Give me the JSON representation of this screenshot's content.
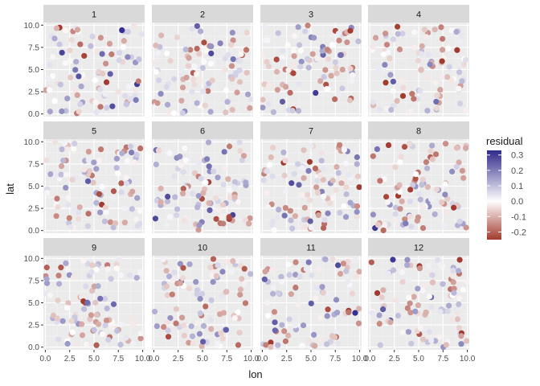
{
  "chart_data": {
    "type": "scatter",
    "facet_by": "month",
    "facet_labels": [
      "1",
      "2",
      "3",
      "4",
      "5",
      "6",
      "7",
      "8",
      "9",
      "10",
      "11",
      "12"
    ],
    "facet_grid": {
      "rows": 3,
      "cols": 4
    },
    "xlabel": "lon",
    "ylabel": "lat",
    "xlim": [
      -0.2,
      10.2
    ],
    "ylim": [
      -0.3,
      10.3
    ],
    "x_ticks": [
      0.0,
      2.5,
      5.0,
      7.5,
      10.0
    ],
    "x_tick_labels": [
      "0.0",
      "2.5",
      "5.0",
      "7.5",
      "10.0"
    ],
    "y_ticks": [
      0.0,
      2.5,
      5.0,
      7.5,
      10.0
    ],
    "y_tick_labels": [
      "0.0",
      "2.5",
      "5.0",
      "7.5",
      "10.0"
    ],
    "grid": true,
    "points_per_facet": 100,
    "color_scale": {
      "type": "diverging",
      "low": "#a23b2f",
      "mid": "#ffffff",
      "high": "#2f2a8a",
      "range": [
        -0.25,
        0.33
      ]
    },
    "legend": {
      "title": "residual",
      "position": "right",
      "tick_values": [
        0.3,
        0.2,
        0.1,
        0.0,
        -0.1,
        -0.2
      ],
      "tick_labels": [
        "0.3",
        "0.2",
        "0.1",
        "0.0",
        "-0.1",
        "-0.2"
      ]
    }
  }
}
